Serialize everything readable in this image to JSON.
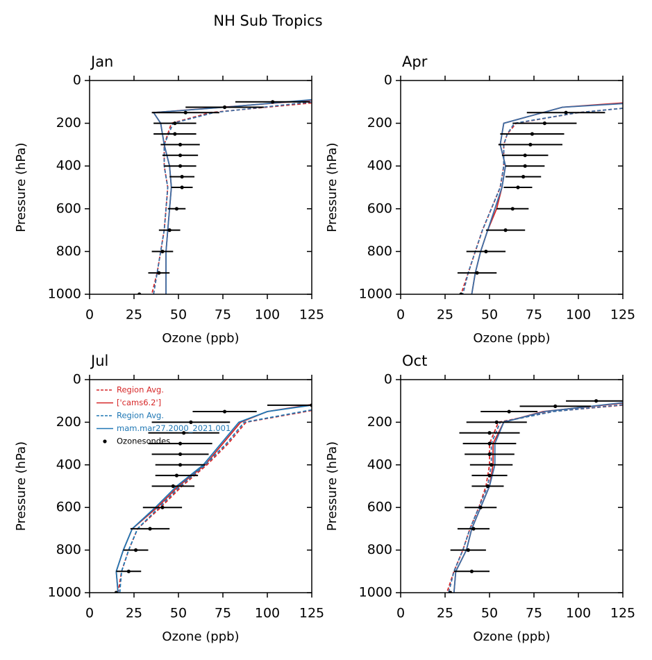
{
  "title": "NH Sub Tropics",
  "chart_data": [
    {
      "type": "profile",
      "title": "Jan",
      "xlabel": "Ozone (ppb)",
      "ylabel": "Pressure (hPa)",
      "xlim": [
        0,
        125
      ],
      "ylim": [
        1000,
        0
      ],
      "xticks": [
        0,
        25,
        50,
        75,
        100,
        125
      ],
      "yticks": [
        0,
        200,
        400,
        600,
        800,
        1000
      ],
      "series": [
        {
          "color": "#d62728",
          "dashed": true,
          "x": [
            125,
            68,
            46,
            42,
            42,
            44,
            43,
            42,
            40,
            38,
            35
          ],
          "y": [
            105,
            150,
            200,
            300,
            400,
            500,
            600,
            700,
            800,
            900,
            1000
          ]
        },
        {
          "color": "#d62728",
          "dashed": false,
          "x": [
            125,
            75,
            36,
            40,
            42,
            45,
            46,
            45,
            44,
            43,
            43,
            43
          ],
          "y": [
            92,
            125,
            150,
            200,
            300,
            400,
            500,
            600,
            700,
            800,
            900,
            1000
          ]
        },
        {
          "color": "#3a6ea5",
          "dashed": true,
          "x": [
            125,
            70,
            47,
            42,
            42,
            44,
            43,
            42,
            40,
            38,
            36
          ],
          "y": [
            100,
            150,
            200,
            300,
            400,
            500,
            600,
            700,
            800,
            900,
            1000
          ]
        },
        {
          "color": "#3a6ea5",
          "dashed": false,
          "x": [
            125,
            76,
            36,
            40,
            42,
            45,
            46,
            45,
            44,
            43,
            43,
            43
          ],
          "y": [
            90,
            125,
            150,
            200,
            300,
            400,
            500,
            600,
            700,
            800,
            900,
            1000
          ]
        },
        {
          "type": "errorbar",
          "color": "#000000",
          "x": [
            103,
            76,
            54,
            48,
            48,
            51,
            51,
            51,
            52,
            52,
            49,
            45,
            41,
            39,
            28
          ],
          "y": [
            100,
            125,
            150,
            200,
            250,
            300,
            350,
            400,
            450,
            500,
            600,
            700,
            800,
            900,
            1000
          ],
          "xerr": [
            21,
            22,
            19,
            12,
            12,
            11,
            10,
            9,
            7,
            6,
            5,
            6,
            6,
            6,
            0
          ]
        }
      ]
    },
    {
      "type": "profile",
      "title": "Apr",
      "xlabel": "Ozone (ppb)",
      "ylabel": "Pressure (hPa)",
      "xlim": [
        0,
        125
      ],
      "ylim": [
        1000,
        0
      ],
      "xticks": [
        0,
        25,
        50,
        75,
        100,
        125
      ],
      "yticks": [
        0,
        200,
        400,
        600,
        800,
        1000
      ],
      "series": [
        {
          "color": "#d62728",
          "dashed": true,
          "x": [
            125,
            100,
            65,
            60,
            58,
            58,
            56,
            51,
            46,
            42,
            38,
            34
          ],
          "y": [
            130,
            150,
            200,
            250,
            300,
            400,
            500,
            600,
            700,
            800,
            900,
            1000
          ]
        },
        {
          "color": "#d62728",
          "dashed": false,
          "x": [
            125,
            91,
            58,
            56,
            59,
            57,
            54,
            49,
            45,
            42,
            40
          ],
          "y": [
            105,
            125,
            200,
            300,
            400,
            500,
            600,
            700,
            800,
            900,
            1000
          ]
        },
        {
          "color": "#3a6ea5",
          "dashed": true,
          "x": [
            125,
            100,
            64,
            60,
            58,
            58,
            56,
            51,
            46,
            42,
            38,
            35
          ],
          "y": [
            130,
            150,
            200,
            250,
            300,
            400,
            500,
            600,
            700,
            800,
            900,
            1000
          ]
        },
        {
          "color": "#3a6ea5",
          "dashed": false,
          "x": [
            125,
            91,
            58,
            56,
            59,
            57,
            53,
            49,
            45,
            42,
            40
          ],
          "y": [
            108,
            125,
            200,
            300,
            400,
            500,
            600,
            700,
            800,
            900,
            1000
          ]
        },
        {
          "type": "errorbar",
          "color": "#000000",
          "x": [
            93,
            81,
            74,
            73,
            70,
            70,
            69,
            66,
            63,
            59,
            48,
            43,
            34
          ],
          "y": [
            150,
            200,
            250,
            300,
            350,
            400,
            450,
            500,
            600,
            700,
            800,
            900,
            1000
          ],
          "xerr": [
            22,
            18,
            18,
            18,
            13,
            11,
            10,
            8,
            9,
            11,
            11,
            11,
            0
          ]
        }
      ]
    },
    {
      "type": "profile",
      "title": "Jul",
      "xlabel": "Ozone (ppb)",
      "ylabel": "Pressure (hPa)",
      "legend": "upper left",
      "xlim": [
        0,
        125
      ],
      "ylim": [
        1000,
        0
      ],
      "xticks": [
        0,
        25,
        50,
        75,
        100,
        125
      ],
      "yticks": [
        0,
        200,
        400,
        600,
        800,
        1000
      ],
      "series": [
        {
          "name": "Region Avg.",
          "color": "#d62728",
          "dashed": true,
          "x": [
            125,
            88,
            78,
            66,
            52,
            40,
            27,
            22,
            18,
            16
          ],
          "y": [
            145,
            200,
            300,
            400,
            500,
            600,
            700,
            800,
            900,
            1000
          ]
        },
        {
          "name": "['cams6.2']",
          "color": "#d62728",
          "dashed": false,
          "x": [
            125,
            100,
            85,
            75,
            65,
            50,
            38,
            24,
            19,
            15,
            16
          ],
          "y": [
            117,
            150,
            200,
            300,
            400,
            500,
            600,
            700,
            800,
            900,
            1000
          ]
        },
        {
          "name": "Region Avg.",
          "color": "#1f77b4",
          "dashed": true,
          "x": [
            125,
            87,
            77,
            65,
            51,
            39,
            27,
            22,
            18,
            17
          ],
          "y": [
            142,
            200,
            300,
            400,
            500,
            600,
            700,
            800,
            900,
            1000
          ]
        },
        {
          "name": "mam.mar27.2000_2021.001",
          "color": "#1f77b4",
          "dashed": false,
          "x": [
            125,
            100,
            84,
            74,
            64,
            49,
            37,
            24,
            19,
            15,
            16
          ],
          "y": [
            120,
            150,
            200,
            300,
            400,
            500,
            600,
            700,
            800,
            900,
            1000
          ]
        },
        {
          "name": "Ozonesondes",
          "type": "errorbar",
          "color": "#000000",
          "x": [
            125,
            76,
            57,
            53,
            51,
            51,
            51,
            49,
            47,
            41,
            34,
            26,
            22,
            15
          ],
          "y": [
            120,
            150,
            200,
            250,
            300,
            350,
            400,
            450,
            500,
            600,
            700,
            800,
            900,
            1000
          ],
          "xerr": [
            25,
            18,
            22,
            20,
            18,
            16,
            14,
            12,
            12,
            11,
            11,
            7,
            7,
            0
          ]
        }
      ]
    },
    {
      "type": "profile",
      "title": "Oct",
      "xlabel": "Ozone (ppb)",
      "ylabel": "Pressure (hPa)",
      "xlim": [
        0,
        125
      ],
      "ylim": [
        1000,
        0
      ],
      "xticks": [
        0,
        25,
        50,
        75,
        100,
        125
      ],
      "yticks": [
        0,
        200,
        400,
        600,
        800,
        1000
      ],
      "series": [
        {
          "color": "#d62728",
          "dashed": true,
          "x": [
            125,
            85,
            55,
            50,
            50,
            48,
            44,
            39,
            35,
            30,
            26
          ],
          "y": [
            120,
            150,
            200,
            300,
            400,
            500,
            600,
            700,
            800,
            900,
            1000
          ]
        },
        {
          "color": "#d62728",
          "dashed": false,
          "x": [
            125,
            80,
            58,
            52,
            52,
            50,
            45,
            40,
            37,
            31,
            30
          ],
          "y": [
            110,
            150,
            200,
            300,
            400,
            500,
            600,
            700,
            800,
            900,
            1000
          ]
        },
        {
          "color": "#3a6ea5",
          "dashed": true,
          "x": [
            125,
            86,
            56,
            51,
            51,
            49,
            44,
            39,
            35,
            30,
            27
          ],
          "y": [
            118,
            150,
            200,
            300,
            400,
            500,
            600,
            700,
            800,
            900,
            1000
          ]
        },
        {
          "color": "#3a6ea5",
          "dashed": false,
          "x": [
            125,
            81,
            58,
            53,
            53,
            50,
            45,
            40,
            37,
            31,
            30
          ],
          "y": [
            108,
            150,
            200,
            300,
            400,
            500,
            600,
            700,
            800,
            900,
            1000
          ]
        },
        {
          "type": "errorbar",
          "color": "#000000",
          "x": [
            110,
            87,
            61,
            54,
            50,
            50,
            50,
            51,
            50,
            49,
            45,
            41,
            38,
            40,
            28
          ],
          "y": [
            100,
            125,
            150,
            200,
            250,
            300,
            350,
            400,
            450,
            500,
            600,
            700,
            800,
            900,
            1000
          ],
          "xerr": [
            17,
            20,
            16,
            17,
            17,
            15,
            14,
            12,
            10,
            9,
            9,
            9,
            10,
            10,
            0
          ]
        }
      ]
    }
  ]
}
